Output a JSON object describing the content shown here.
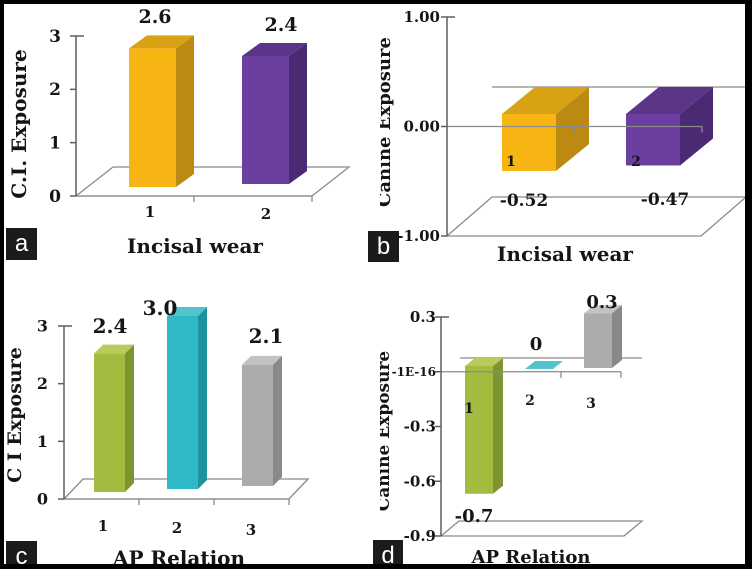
{
  "figure": {
    "panel_letters": [
      "a",
      "b",
      "c",
      "d"
    ]
  },
  "chart_data": [
    {
      "panel": "a",
      "type": "bar",
      "style": "3d",
      "xlabel": "Incisal wear",
      "ylabel": "C.I. Exposure",
      "categories": [
        "1",
        "2"
      ],
      "values": [
        2.6,
        2.4
      ],
      "value_labels": [
        "2.6",
        "2.4"
      ],
      "ylim": [
        0,
        3
      ],
      "ytick_values": [
        3,
        2,
        1,
        0
      ],
      "ytick_labels": [
        "3",
        "2",
        "1",
        "0"
      ],
      "category_label_placement": "below-axis",
      "grid": false,
      "legend": "none",
      "bar_colors": [
        {
          "name": "gold",
          "front": "#F6B513",
          "side": "#BC8A10",
          "top": "#D9A214"
        },
        {
          "name": "purple",
          "front": "#6A3F9F",
          "side": "#4A2A73",
          "top": "#5B3588"
        }
      ]
    },
    {
      "panel": "b",
      "type": "bar",
      "style": "3d",
      "xlabel": "Incisal wear",
      "ylabel": "Canine Exposure",
      "categories": [
        "1",
        "2"
      ],
      "values": [
        -0.52,
        -0.47
      ],
      "value_labels": [
        "-0.52",
        "-0.47"
      ],
      "ylim": [
        -1,
        1
      ],
      "ytick_values": [
        1,
        0,
        -1
      ],
      "ytick_labels": [
        "1.00",
        "0.00",
        "-1.00"
      ],
      "category_label_placement": "inside-bars",
      "grid": false,
      "legend": "none",
      "bar_colors": [
        {
          "name": "gold",
          "front": "#F6B513",
          "side": "#BC8A10",
          "top": "#D9A214"
        },
        {
          "name": "purple",
          "front": "#6A3F9F",
          "side": "#4A2A73",
          "top": "#5B3588"
        }
      ]
    },
    {
      "panel": "c",
      "type": "bar",
      "style": "3d",
      "xlabel": "AP Relation",
      "ylabel": "C I Exposure",
      "categories": [
        "1",
        "2",
        "3"
      ],
      "values": [
        2.4,
        3.0,
        2.1
      ],
      "value_labels": [
        "2.4",
        "3.0",
        "2.1"
      ],
      "ylim": [
        0,
        3
      ],
      "ytick_values": [
        3,
        2,
        1,
        0
      ],
      "ytick_labels": [
        "3",
        "2",
        "1",
        "0"
      ],
      "category_label_placement": "below-axis",
      "grid": false,
      "legend": "none",
      "bar_colors": [
        {
          "name": "green",
          "front": "#A3BC3F",
          "side": "#7E9430",
          "top": "#B8CB5D"
        },
        {
          "name": "cyan",
          "front": "#2FB9C7",
          "side": "#1E939F",
          "top": "#52C4CE"
        },
        {
          "name": "gray",
          "front": "#ACACAC",
          "side": "#898989",
          "top": "#C2C2C2"
        }
      ]
    },
    {
      "panel": "d",
      "type": "bar",
      "style": "3d",
      "xlabel": "AP Relation",
      "ylabel": "Canine Exposure",
      "categories": [
        "1",
        "2",
        "3"
      ],
      "values": [
        -0.7,
        0,
        0.3
      ],
      "value_labels": [
        "-0.7",
        "0",
        "0.3"
      ],
      "ylim": [
        -0.9,
        0.3
      ],
      "ytick_values": [
        0.3,
        0,
        -0.3,
        -0.6,
        -0.9
      ],
      "ytick_labels": [
        "0.3",
        "-1E-16",
        "-0.3",
        "-0.6",
        "-0.9"
      ],
      "category_label_placement": "below-axis",
      "grid": false,
      "legend": "none",
      "bar_colors": [
        {
          "name": "green",
          "front": "#A3BC3F",
          "side": "#7E9430",
          "top": "#B8CB5D"
        },
        {
          "name": "cyan",
          "front": "#2FB9C7",
          "side": "#1E939F",
          "top": "#52C4CE"
        },
        {
          "name": "gray",
          "front": "#ACACAC",
          "side": "#898989",
          "top": "#C2C2C2"
        }
      ]
    }
  ]
}
